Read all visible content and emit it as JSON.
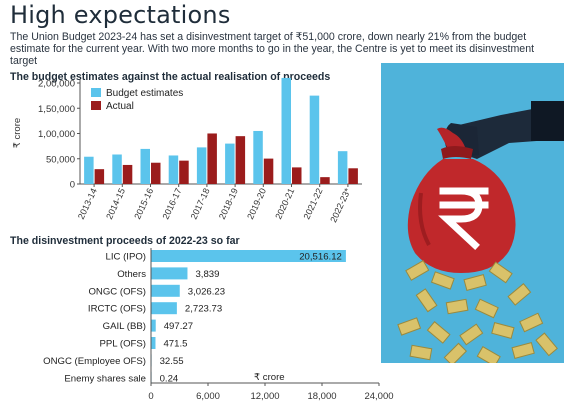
{
  "title": "High expectations",
  "subtitle": "The Union Budget 2023-24 has set a disinvestment target of ₹51,000 crore, down nearly 21% from the budget estimate for the current year.  With two more months to go in the year, the Centre is yet to meet its disinvestment target",
  "colors": {
    "budget": "#5bc4ec",
    "actual": "#9b1c1c",
    "hbar": "#5bc4ec",
    "bg_illustration": "#4fb3da",
    "bag": "#c0282b"
  },
  "illustration": {
    "icon": "rupee-money-bag-icon"
  },
  "chart_data": [
    {
      "type": "bar",
      "title": "The budget estimates against the actual realisation of proceeds",
      "ylabel": "₹ crore",
      "ylim": [
        0,
        200000
      ],
      "yticks": [
        "0",
        "50,000",
        "1,00,000",
        "1,50,000",
        "2,00,000"
      ],
      "ytick_values": [
        0,
        50000,
        100000,
        150000,
        200000
      ],
      "legend_position": "top-left",
      "categories": [
        "2013-14",
        "2014-15",
        "2015-16",
        "2016-17",
        "2017-18",
        "2018-19",
        "2019-20",
        "2020-21",
        "2021-22",
        "2022-23*"
      ],
      "series": [
        {
          "name": "Budget estimates",
          "values": [
            54000,
            58425,
            69500,
            56500,
            72500,
            80000,
            105000,
            210000,
            175000,
            65000
          ]
        },
        {
          "name": "Actual",
          "values": [
            29368,
            37737,
            42132,
            46247,
            100056,
            94727,
            50298,
            32886,
            13561,
            31106
          ]
        }
      ]
    },
    {
      "type": "bar",
      "orientation": "horizontal",
      "title": "The disinvestment proceeds of 2022-23 so far",
      "xlabel": "₹ crore",
      "xlim": [
        0,
        24000
      ],
      "xticks": [
        "0",
        "6,000",
        "12,000",
        "18,000",
        "24,000"
      ],
      "xtick_values": [
        0,
        6000,
        12000,
        18000,
        24000
      ],
      "categories": [
        "LIC (IPO)",
        "Others",
        "ONGC (OFS)",
        "IRCTC (OFS)",
        "GAIL (BB)",
        "PPL (OFS)",
        "ONGC (Employee OFS)",
        "Enemy shares sale"
      ],
      "values": [
        20516.12,
        3839,
        3026.23,
        2723.73,
        497.27,
        471.5,
        32.55,
        0.24
      ],
      "value_labels": [
        "20,516.12",
        "3,839",
        "3,026.23",
        "2,723.73",
        "497.27",
        "471.5",
        "32.55",
        "0.24"
      ]
    }
  ]
}
